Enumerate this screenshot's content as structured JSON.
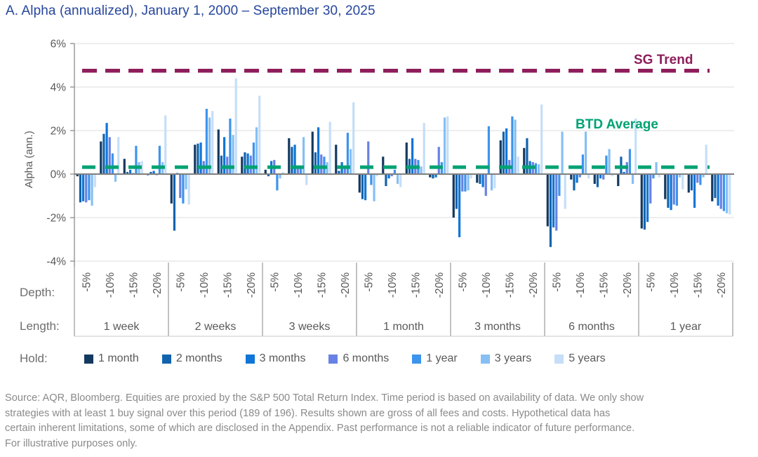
{
  "title": "A. Alpha (annualized), January 1, 2000 – September 30, 2025",
  "chart_data": {
    "type": "bar",
    "ylabel": "Alpha (ann.)",
    "ytick_labels": [
      "6%",
      "4%",
      "2%",
      "0%",
      "-2%",
      "-4%"
    ],
    "ylim": [
      -4.3,
      6
    ],
    "grid": true,
    "depth_axis_label": "Depth:",
    "length_axis_label": "Length:",
    "hold_legend_label": "Hold:",
    "depths": [
      "-5%",
      "-10%",
      "-15%",
      "-20%"
    ],
    "holds": [
      {
        "label": "1 month",
        "color": "#14395f"
      },
      {
        "label": "2 months",
        "color": "#1263ae"
      },
      {
        "label": "3 months",
        "color": "#0f75d7"
      },
      {
        "label": "6 months",
        "color": "#6782e4"
      },
      {
        "label": "1 year",
        "color": "#3d94ed"
      },
      {
        "label": "3 years",
        "color": "#86bff4"
      },
      {
        "label": "5 years",
        "color": "#c6def8"
      }
    ],
    "reference_lines": [
      {
        "label": "SG Trend",
        "value": 4.75,
        "color": "#8e1d5b"
      },
      {
        "label": "BTD Average",
        "value": 0.32,
        "color": "#00a273"
      }
    ],
    "groups": [
      {
        "length": "1 week",
        "values_by_depth": [
          [
            -0.1,
            -1.3,
            -1.25,
            -1.3,
            -1.2,
            -1.45,
            -0.6
          ],
          [
            1.5,
            1.85,
            2.35,
            1.7,
            0.95,
            -0.35,
            1.7
          ],
          [
            0.7,
            0.1,
            0.2,
            0.05,
            1.3,
            0.55,
            0.6
          ],
          [
            -0.05,
            0.1,
            0.15,
            -0.05,
            1.3,
            0.55,
            2.7
          ]
        ]
      },
      {
        "length": "2 weeks",
        "values_by_depth": [
          [
            -1.35,
            -2.6,
            0.05,
            -1.1,
            -1.35,
            -0.7,
            -1.4
          ],
          [
            1.35,
            1.4,
            1.45,
            0.6,
            3.0,
            2.6,
            2.9
          ],
          [
            2.05,
            0.85,
            1.7,
            0.8,
            2.55,
            1.8,
            4.4
          ],
          [
            0.8,
            1.0,
            0.95,
            0.85,
            1.45,
            2.15,
            3.6
          ]
        ]
      },
      {
        "length": "3 weeks",
        "values_by_depth": [
          [
            0.2,
            -0.1,
            0.6,
            0.65,
            -0.75,
            -0.2,
            0.1
          ],
          [
            1.65,
            1.25,
            1.35,
            0.25,
            0.35,
            1.7,
            -0.5
          ],
          [
            1.95,
            1.0,
            2.15,
            0.9,
            0.8,
            0.55,
            2.4
          ],
          [
            1.35,
            0.15,
            0.55,
            0.3,
            1.9,
            1.15,
            3.3
          ]
        ]
      },
      {
        "length": "1 month",
        "values_by_depth": [
          [
            -0.85,
            -1.15,
            -1.2,
            1.5,
            -0.5,
            -1.25,
            -0.1
          ],
          [
            0.8,
            -0.55,
            -0.2,
            -0.1,
            0.2,
            -0.45,
            -0.6
          ],
          [
            1.45,
            0.7,
            1.65,
            0.7,
            0.65,
            0.35,
            2.35
          ],
          [
            -0.15,
            -0.2,
            -0.15,
            1.25,
            0.55,
            2.6,
            2.65
          ]
        ]
      },
      {
        "length": "3 months",
        "values_by_depth": [
          [
            -2.0,
            -1.6,
            -2.9,
            -0.8,
            -0.8,
            -0.75,
            -0.2
          ],
          [
            -0.4,
            -0.45,
            -0.6,
            -1.0,
            2.2,
            -0.75,
            -0.65
          ],
          [
            1.55,
            1.95,
            2.1,
            0.65,
            2.65,
            2.5,
            0.8
          ],
          [
            1.2,
            1.65,
            0.6,
            0.55,
            0.5,
            0.45,
            3.2
          ]
        ]
      },
      {
        "length": "6 months",
        "values_by_depth": [
          [
            -2.4,
            -3.35,
            -2.45,
            -2.6,
            -1.0,
            1.95,
            -1.6
          ],
          [
            -0.25,
            -0.75,
            -0.4,
            -0.15,
            0.9,
            1.95,
            -0.2
          ],
          [
            -0.45,
            -0.6,
            -0.2,
            -0.25,
            0.85,
            1.15,
            -0.1
          ],
          [
            -0.55,
            0.8,
            0.1,
            0.55,
            1.15,
            -0.45,
            2.55
          ]
        ]
      },
      {
        "length": "1 year",
        "values_by_depth": [
          [
            -2.5,
            -2.55,
            -2.2,
            -1.35,
            -0.2,
            0.55,
            -0.15
          ],
          [
            -1.15,
            -1.55,
            -1.65,
            -1.4,
            -1.45,
            -0.15,
            -0.7
          ],
          [
            -0.85,
            -0.75,
            -1.55,
            -0.4,
            -0.5,
            -0.15,
            1.35
          ],
          [
            -1.25,
            -1.1,
            -1.45,
            -1.6,
            -1.7,
            -1.8,
            -1.85
          ]
        ]
      }
    ]
  },
  "source": {
    "lines": [
      "Source: AQR, Bloomberg. Equities are proxied by the S&P 500 Total Return Index. Time period is based on availability of data. We only show",
      "strategies with at least 1 buy signal over this period (189 of 196). Results shown are gross of all fees and costs. Hypothetical data has",
      "certain inherent limitations, some of which are disclosed in the Appendix. Past performance is not a reliable indicator of future performance.",
      "For illustrative purposes only."
    ]
  }
}
